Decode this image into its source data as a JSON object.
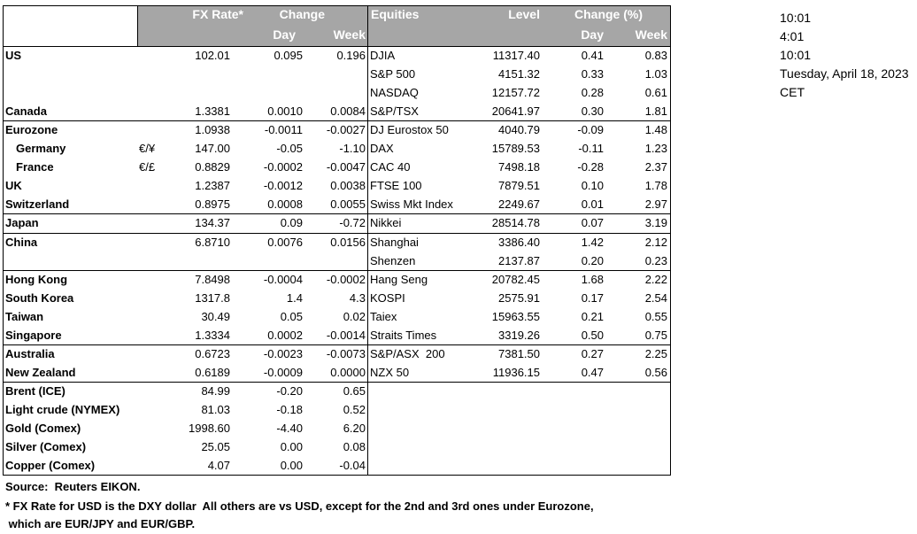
{
  "header": {
    "fx_rate": "FX Rate*",
    "change": "Change",
    "day": "Day",
    "week": "Week",
    "equities": "Equities",
    "level": "Level",
    "change_pct": "Change (%)",
    "eq_day": "Day",
    "eq_week": "Week"
  },
  "table": {
    "rows": [
      [
        "US",
        null,
        "102.01",
        "0.095",
        "0.196",
        "DJIA",
        "11317.40",
        "0.41",
        "0.83"
      ],
      [
        null,
        null,
        null,
        null,
        null,
        "S&P 500",
        "4151.32",
        "0.33",
        "1.03"
      ],
      [
        null,
        null,
        null,
        null,
        null,
        "NASDAQ",
        "12157.72",
        "0.28",
        "0.61"
      ],
      [
        "Canada",
        null,
        "1.3381",
        "0.0010",
        "0.0084",
        "S&P/TSX",
        "20641.97",
        "0.30",
        "1.81"
      ],
      [
        "Eurozone",
        null,
        "1.0938",
        "-0.0011",
        "-0.0027",
        "DJ Eurostox 50",
        "4040.79",
        "-0.09",
        "1.48"
      ],
      [
        "Germany",
        "€/¥",
        "147.00",
        "-0.05",
        "-1.10",
        "DAX",
        "15789.53",
        "-0.11",
        "1.23"
      ],
      [
        "France",
        "€/£",
        "0.8829",
        "-0.0002",
        "-0.0047",
        "CAC 40",
        "7498.18",
        "-0.28",
        "2.37"
      ],
      [
        "UK",
        null,
        "1.2387",
        "-0.0012",
        "0.0038",
        "FTSE 100",
        "7879.51",
        "0.10",
        "1.78"
      ],
      [
        "Switzerland",
        null,
        "0.8975",
        "0.0008",
        "0.0055",
        "Swiss Mkt Index",
        "2249.67",
        "0.01",
        "2.97"
      ],
      [
        "Japan",
        null,
        "134.37",
        "0.09",
        "-0.72",
        "Nikkei",
        "28514.78",
        "0.07",
        "3.19"
      ],
      [
        "China",
        null,
        "6.8710",
        "0.0076",
        "0.0156",
        "Shanghai",
        "3386.40",
        "1.42",
        "2.12"
      ],
      [
        null,
        null,
        null,
        null,
        null,
        "Shenzen",
        "2137.87",
        "0.20",
        "0.23"
      ],
      [
        "Hong Kong",
        null,
        "7.8498",
        "-0.0004",
        "-0.0002",
        "Hang Seng",
        "20782.45",
        "1.68",
        "2.22"
      ],
      [
        "South Korea",
        null,
        "1317.8",
        "1.4",
        "4.3",
        "KOSPI",
        "2575.91",
        "0.17",
        "2.54"
      ],
      [
        "Taiwan",
        null,
        "30.49",
        "0.05",
        "0.02",
        "Taiex",
        "15963.55",
        "0.21",
        "0.55"
      ],
      [
        "Singapore",
        null,
        "1.3334",
        "0.0002",
        "-0.0014",
        "Straits Times",
        "3319.26",
        "0.50",
        "0.75"
      ],
      [
        "Australia",
        null,
        "0.6723",
        "-0.0023",
        "-0.0073",
        "S&P/ASX  200",
        "7381.50",
        "0.27",
        "2.25"
      ],
      [
        "New Zealand",
        null,
        "0.6189",
        "-0.0009",
        "0.0000",
        "NZX 50",
        "11936.15",
        "0.47",
        "0.56"
      ],
      [
        "Brent (ICE)",
        null,
        "84.99",
        "-0.20",
        "0.65",
        null,
        null,
        null,
        null
      ],
      [
        "Light crude (NYMEX)",
        null,
        "81.03",
        "-0.18",
        "0.52",
        null,
        null,
        null,
        null
      ],
      [
        "Gold (Comex)",
        null,
        "1998.60",
        "-4.40",
        "6.20",
        null,
        null,
        null,
        null
      ],
      [
        "Silver (Comex)",
        null,
        "25.05",
        "0.00",
        "0.08",
        null,
        null,
        null,
        null
      ],
      [
        "Copper (Comex)",
        null,
        "4.07",
        "0.00",
        "-0.04",
        null,
        null,
        null,
        null
      ]
    ]
  },
  "times": [
    "10:01",
    "4:01",
    "10:01",
    "Tuesday, April 18, 2023",
    "CET"
  ],
  "footer": {
    "source": "Source:  Reuters EIKON.",
    "note_1": "* FX Rate for USD is the DXY dollar  All others are vs USD, except for the 2nd and 3rd ones under Eurozone,",
    "note_2": " which are EUR/JPY and EUR/GBP."
  }
}
